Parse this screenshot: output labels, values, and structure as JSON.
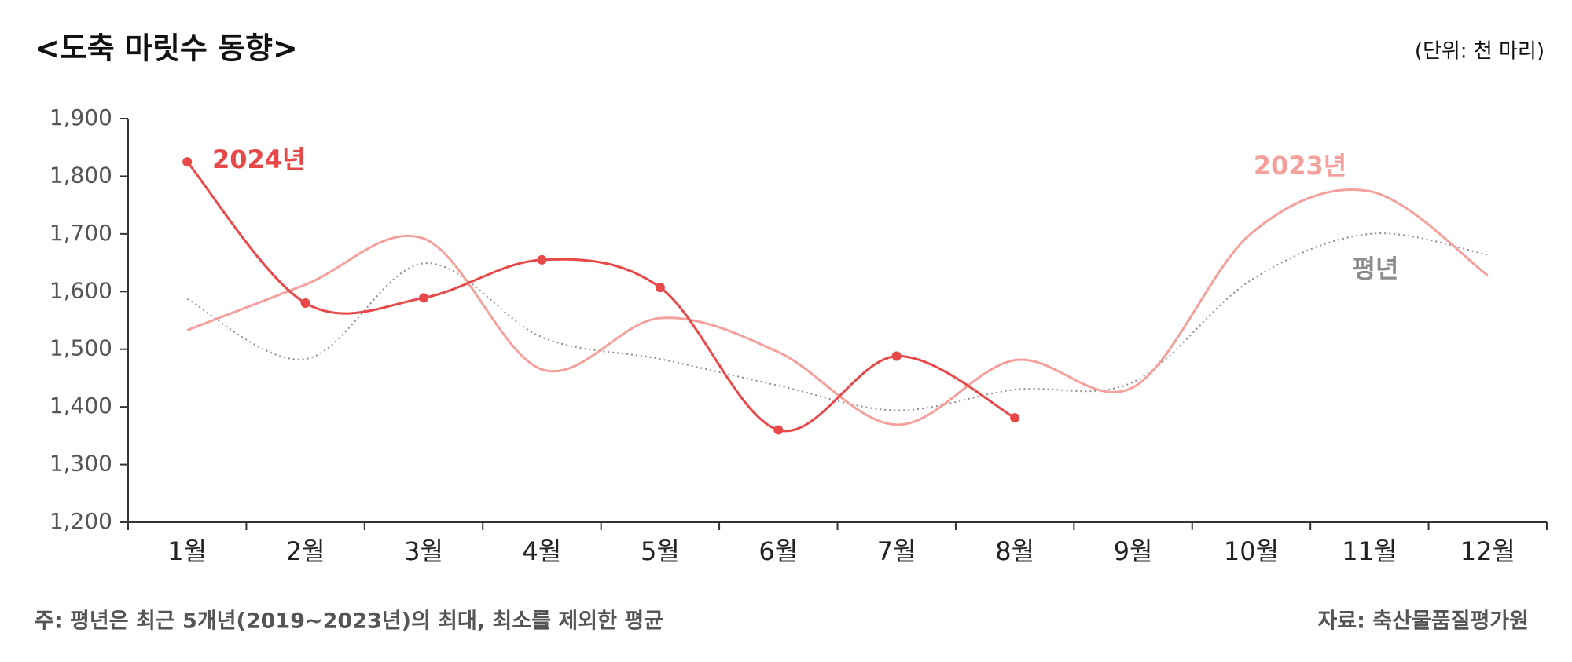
{
  "chart_data": {
    "type": "line",
    "title": "<도축 마릿수 동향>",
    "unit": "(단위: 천 마리)",
    "note": "주: 평년은 최근 5개년(2019~2023년)의 최대, 최소를 제외한 평균",
    "source": "자료: 축산물품질평가원",
    "categories": [
      "1월",
      "2월",
      "3월",
      "4월",
      "5월",
      "6월",
      "7월",
      "8월",
      "9월",
      "10월",
      "11월",
      "12월"
    ],
    "ylim": [
      1200,
      1900
    ],
    "yticks": [
      {
        "value": 1200,
        "label": "1,200"
      },
      {
        "value": 1300,
        "label": "1,300"
      },
      {
        "value": 1400,
        "label": "1,400"
      },
      {
        "value": 1500,
        "label": "1,500"
      },
      {
        "value": 1600,
        "label": "1,600"
      },
      {
        "value": 1700,
        "label": "1,700"
      },
      {
        "value": 1800,
        "label": "1,800"
      },
      {
        "value": 1900,
        "label": "1,900"
      }
    ],
    "grid": false,
    "series": [
      {
        "name": "평년",
        "color": "#8c8c8c",
        "style": "dotted",
        "markers": false,
        "values": [
          1587,
          1483,
          1649,
          1521,
          1483,
          1437,
          1394,
          1430,
          1443,
          1620,
          1700,
          1664
        ]
      },
      {
        "name": "2023년",
        "color": "#f4a19d",
        "style": "solid",
        "markers": false,
        "values": [
          1533,
          1612,
          1692,
          1465,
          1554,
          1495,
          1369,
          1481,
          1434,
          1701,
          1774,
          1628
        ]
      },
      {
        "name": "2024년",
        "color": "#e84848",
        "style": "solid",
        "markers": true,
        "values": [
          1825,
          1580,
          1589,
          1655,
          1607,
          1360,
          1488,
          1381,
          null,
          null,
          null,
          null
        ]
      }
    ]
  }
}
